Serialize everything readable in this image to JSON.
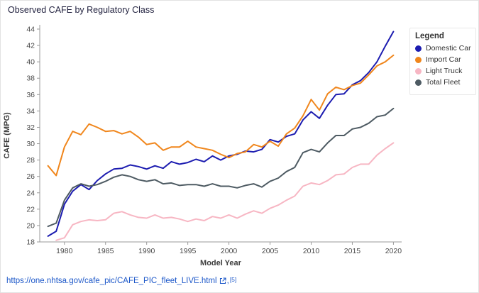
{
  "title": "Observed CAFE by Regulatory Class",
  "legend": {
    "title": "Legend"
  },
  "chart_data": {
    "type": "line",
    "title": "Observed CAFE by Regulatory Class",
    "xlabel": "Model Year",
    "ylabel": "CAFE (MPG)",
    "x_range": [
      1977,
      2021
    ],
    "ylim": [
      18,
      44
    ],
    "grid": false,
    "legend_position": "right",
    "x_ticks": [
      1980,
      1985,
      1990,
      1995,
      2000,
      2005,
      2010,
      2015,
      2020
    ],
    "y_ticks": [
      18,
      20,
      22,
      24,
      26,
      28,
      30,
      32,
      34,
      36,
      38,
      40,
      42,
      44
    ],
    "x": [
      1978,
      1979,
      1980,
      1981,
      1982,
      1983,
      1984,
      1985,
      1986,
      1987,
      1988,
      1989,
      1990,
      1991,
      1992,
      1993,
      1994,
      1995,
      1996,
      1997,
      1998,
      1999,
      2000,
      2001,
      2002,
      2003,
      2004,
      2005,
      2006,
      2007,
      2008,
      2009,
      2010,
      2011,
      2012,
      2013,
      2014,
      2015,
      2016,
      2017,
      2018,
      2019,
      2020
    ],
    "series": [
      {
        "name": "Domestic Car",
        "color": "#1c1cb0",
        "values": [
          18.7,
          19.3,
          22.6,
          24.2,
          25.0,
          24.4,
          25.5,
          26.3,
          26.9,
          27.0,
          27.4,
          27.2,
          26.9,
          27.3,
          27.0,
          27.8,
          27.5,
          27.7,
          28.1,
          27.8,
          28.5,
          28.0,
          28.5,
          28.7,
          29.1,
          29.0,
          29.3,
          30.5,
          30.2,
          30.9,
          31.2,
          32.9,
          33.9,
          33.1,
          34.7,
          36.0,
          36.1,
          37.2,
          37.7,
          38.7,
          40.0,
          41.9,
          43.7
        ]
      },
      {
        "name": "Import Car",
        "color": "#f0861c",
        "values": [
          27.3,
          26.1,
          29.6,
          31.5,
          31.1,
          32.4,
          32.0,
          31.5,
          31.6,
          31.2,
          31.5,
          30.8,
          29.9,
          30.1,
          29.2,
          29.6,
          29.6,
          30.3,
          29.6,
          29.4,
          29.2,
          28.7,
          28.3,
          28.8,
          29.0,
          29.9,
          29.6,
          30.3,
          29.7,
          31.2,
          31.9,
          33.4,
          35.4,
          34.1,
          36.1,
          36.9,
          36.6,
          37.1,
          37.4,
          38.4,
          39.5,
          40.0,
          40.8
        ]
      },
      {
        "name": "Light Truck",
        "color": "#f7b6c3",
        "values": [
          null,
          18.2,
          18.5,
          20.1,
          20.5,
          20.7,
          20.6,
          20.7,
          21.5,
          21.7,
          21.3,
          21.0,
          20.9,
          21.3,
          20.9,
          21.0,
          20.8,
          20.5,
          20.8,
          20.6,
          21.1,
          20.9,
          21.3,
          20.9,
          21.4,
          21.8,
          21.5,
          22.1,
          22.5,
          23.1,
          23.6,
          24.8,
          25.2,
          25.0,
          25.5,
          26.2,
          26.3,
          27.1,
          27.5,
          27.5,
          28.6,
          29.4,
          30.1
        ]
      },
      {
        "name": "Total Fleet",
        "color": "#4e5b63",
        "values": [
          19.9,
          20.3,
          23.1,
          24.6,
          25.1,
          24.8,
          25.0,
          25.4,
          25.9,
          26.2,
          26.0,
          25.6,
          25.4,
          25.6,
          25.1,
          25.2,
          24.9,
          25.0,
          25.0,
          24.8,
          25.1,
          24.8,
          24.8,
          24.6,
          24.9,
          25.1,
          24.7,
          25.4,
          25.8,
          26.6,
          27.1,
          28.9,
          29.3,
          29.0,
          30.1,
          31.0,
          31.0,
          31.8,
          32.0,
          32.5,
          33.3,
          33.5,
          34.3
        ]
      }
    ]
  },
  "footer": {
    "link_text": "https://one.nhtsa.gov/cafe_pic/CAFE_PIC_fleet_LIVE.html",
    "separator": ",",
    "citation": "[5]",
    "link_color": "#1d58c9"
  }
}
